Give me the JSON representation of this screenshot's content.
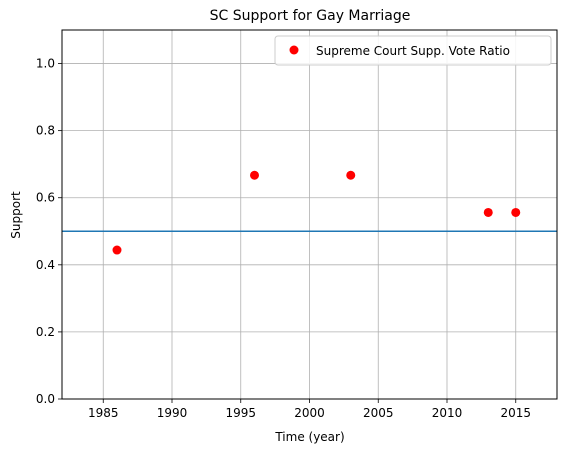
{
  "chart_data": {
    "type": "scatter",
    "title": "SC Support for Gay Marriage",
    "xlabel": "Time (year)",
    "ylabel": "Support",
    "xlim": [
      1982,
      2018
    ],
    "ylim": [
      0.0,
      1.1
    ],
    "x_ticks": [
      1985,
      1990,
      1995,
      2000,
      2005,
      2010,
      2015
    ],
    "y_ticks": [
      0.0,
      0.2,
      0.4,
      0.6,
      0.8,
      1.0
    ],
    "x_tick_labels": [
      "1985",
      "1990",
      "1995",
      "2000",
      "2005",
      "2010",
      "2015"
    ],
    "y_tick_labels": [
      "0.0",
      "0.2",
      "0.4",
      "0.6",
      "0.8",
      "1.0"
    ],
    "grid": true,
    "legend_position": "top-right",
    "series": [
      {
        "name": "Supreme Court Supp. Vote Ratio",
        "color": "#ff0000",
        "marker": "circle",
        "x": [
          1986,
          1996,
          2003,
          2013,
          2015
        ],
        "y": [
          0.444,
          0.667,
          0.667,
          0.556,
          0.556
        ]
      }
    ],
    "reference_lines": [
      {
        "orientation": "horizontal",
        "y": 0.5,
        "color": "#1f77b4"
      }
    ]
  }
}
